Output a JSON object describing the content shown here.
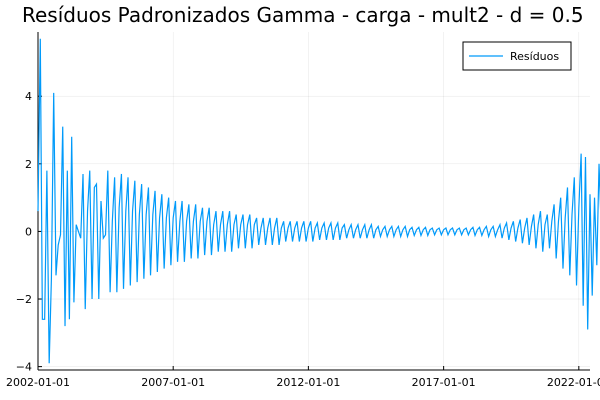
{
  "chart_data": {
    "type": "line",
    "title": "Resíduos Padronizados Gamma - carga - mult2 - d = 0.5",
    "xlabel": "",
    "ylabel": "",
    "x_range": [
      "2002-01-01",
      "2022-06-01"
    ],
    "x_ticks": [
      "2002-01-01",
      "2007-01-01",
      "2012-01-01",
      "2017-01-01",
      "2022-01-01"
    ],
    "ylim": [
      -4.1,
      5.9
    ],
    "y_ticks": [
      -4,
      -2,
      0,
      2,
      4
    ],
    "grid": true,
    "legend_position": "top-right",
    "series": [
      {
        "name": "Resíduos",
        "color": "#009AFA",
        "start": "2002-01-01",
        "frequency": "monthly",
        "values": [
          0.6,
          5.7,
          -2.6,
          -2.6,
          1.8,
          -3.9,
          -1.4,
          4.1,
          -1.3,
          -0.4,
          -0.1,
          3.1,
          -2.8,
          1.8,
          -2.6,
          2.8,
          -2.1,
          0.2,
          0.0,
          -0.2,
          1.7,
          -2.3,
          0.6,
          1.8,
          -2.0,
          1.3,
          1.4,
          -2.0,
          0.9,
          -0.2,
          -0.1,
          1.8,
          -1.8,
          0.3,
          1.6,
          -1.8,
          0.7,
          1.7,
          -1.7,
          0.6,
          1.6,
          -1.6,
          0.6,
          1.5,
          -1.5,
          0.5,
          1.4,
          -1.4,
          0.5,
          1.3,
          -1.3,
          0.5,
          1.2,
          -1.2,
          0.4,
          1.1,
          -1.1,
          0.4,
          1.0,
          -1.0,
          0.4,
          0.9,
          -0.9,
          0.3,
          0.9,
          -0.9,
          0.3,
          0.8,
          -0.8,
          0.3,
          0.8,
          -0.8,
          0.3,
          0.7,
          -0.7,
          0.3,
          0.7,
          -0.7,
          0.2,
          0.6,
          -0.6,
          0.2,
          0.6,
          -0.6,
          0.2,
          0.6,
          -0.6,
          0.2,
          0.5,
          -0.5,
          0.2,
          0.5,
          -0.5,
          0.2,
          0.5,
          -0.5,
          0.2,
          0.4,
          -0.4,
          0.1,
          0.4,
          -0.4,
          0.1,
          0.4,
          -0.4,
          0.1,
          0.4,
          -0.4,
          0.1,
          0.3,
          -0.3,
          0.1,
          0.3,
          -0.3,
          0.1,
          0.3,
          -0.3,
          0.1,
          0.3,
          -0.3,
          0.1,
          0.3,
          -0.3,
          0.1,
          0.25,
          -0.25,
          0.1,
          0.25,
          -0.25,
          0.1,
          0.25,
          -0.25,
          0.1,
          0.25,
          -0.25,
          0.1,
          0.2,
          -0.2,
          0.05,
          0.2,
          -0.2,
          0.05,
          0.2,
          -0.2,
          0.05,
          0.2,
          -0.2,
          0.05,
          0.2,
          -0.2,
          0.05,
          0.15,
          -0.15,
          0.05,
          0.15,
          -0.15,
          0.05,
          0.15,
          -0.15,
          0.05,
          0.15,
          -0.15,
          0.05,
          0.15,
          -0.15,
          0.05,
          0.12,
          -0.12,
          0.05,
          0.12,
          -0.12,
          0.05,
          0.12,
          -0.12,
          0.05,
          0.1,
          -0.1,
          0.05,
          0.1,
          -0.1,
          0.05,
          0.1,
          -0.1,
          0.05,
          0.1,
          -0.1,
          0.05,
          0.1,
          -0.1,
          0.05,
          0.1,
          -0.1,
          0.05,
          0.12,
          -0.12,
          0.05,
          0.12,
          -0.12,
          0.05,
          0.15,
          -0.15,
          0.05,
          0.15,
          -0.15,
          0.05,
          0.2,
          -0.2,
          0.1,
          0.25,
          -0.25,
          0.1,
          0.3,
          -0.3,
          0.1,
          0.35,
          -0.35,
          0.1,
          0.4,
          -0.4,
          0.15,
          0.5,
          -0.5,
          0.2,
          0.6,
          -0.6,
          0.2,
          0.5,
          -0.5,
          0.3,
          0.8,
          -0.8,
          0.3,
          1.0,
          -1.1,
          0.4,
          1.3,
          -1.3,
          0.5,
          1.6,
          -1.6,
          0.7,
          2.3,
          -2.2,
          2.2,
          -2.9,
          1.1,
          -1.9,
          1.0,
          -1.0,
          2.0,
          0.0
        ]
      }
    ]
  }
}
